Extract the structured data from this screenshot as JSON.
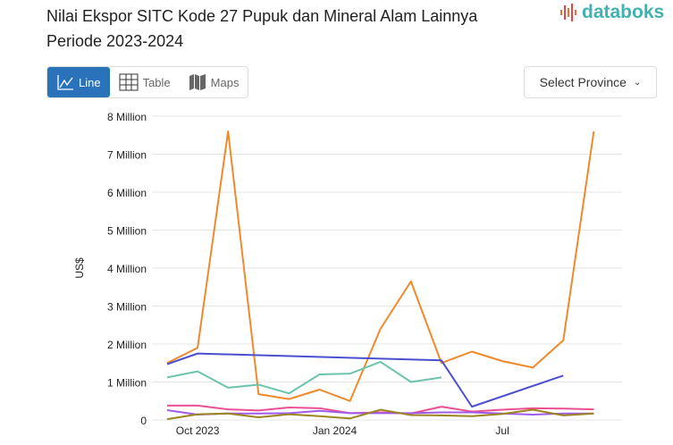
{
  "header": {
    "title_line1": "Nilai Ekspor SITC Kode 27 Pupuk dan Mineral Alam Lainnya",
    "title_line2": "Periode 2023-2024",
    "logo_text": "databoks"
  },
  "tabs": [
    {
      "label": "Line",
      "icon": "line-chart-icon",
      "active": true
    },
    {
      "label": "Table",
      "icon": "table-icon",
      "active": false
    },
    {
      "label": "Maps",
      "icon": "map-icon",
      "active": false
    }
  ],
  "province_select": {
    "label": "Select Province",
    "icon": "chevron-down-icon"
  },
  "colors": {
    "accent": "#2a73bb",
    "logo": "#3fb3b0"
  },
  "chart_data": {
    "type": "line",
    "ylabel": "US$",
    "ylim": [
      0,
      8000000
    ],
    "y_ticks": [
      {
        "v": 0,
        "label": "0"
      },
      {
        "v": 1000000,
        "label": "1 Million"
      },
      {
        "v": 2000000,
        "label": "2 Million"
      },
      {
        "v": 3000000,
        "label": "3 Million"
      },
      {
        "v": 4000000,
        "label": "4 Million"
      },
      {
        "v": 5000000,
        "label": "5 Million"
      },
      {
        "v": 6000000,
        "label": "6 Million"
      },
      {
        "v": 7000000,
        "label": "7 Million"
      },
      {
        "v": 8000000,
        "label": "8 Million"
      }
    ],
    "x_ticks": [
      {
        "i": 1,
        "label": "Oct 2023"
      },
      {
        "i": 5.5,
        "label": "Jan 2024"
      },
      {
        "i": 11,
        "label": "Jul"
      }
    ],
    "grid": true,
    "series": [
      {
        "color": "#f0892a",
        "values": [
          1500000,
          1900000,
          7600000,
          680000,
          550000,
          800000,
          500000,
          2400000,
          3650000,
          1500000,
          1800000,
          1550000,
          1380000,
          2100000,
          7600000
        ]
      },
      {
        "color": "#4a4fd0",
        "values": [
          1470000,
          1750000,
          null,
          null,
          null,
          null,
          null,
          null,
          null,
          1570000,
          350000,
          null,
          null,
          1170000,
          null
        ]
      },
      {
        "color": "#6cc3ae",
        "values": [
          1120000,
          1280000,
          850000,
          930000,
          700000,
          1200000,
          1220000,
          1530000,
          1000000,
          1120000,
          null,
          null,
          null,
          null,
          null
        ]
      },
      {
        "color": "#ec4f93",
        "values": [
          380000,
          380000,
          280000,
          250000,
          330000,
          310000,
          180000,
          200000,
          170000,
          350000,
          220000,
          270000,
          310000,
          300000,
          280000
        ]
      },
      {
        "color": "#a05be8",
        "values": [
          260000,
          140000,
          170000,
          170000,
          180000,
          240000,
          180000,
          180000,
          180000,
          200000,
          200000,
          170000,
          140000,
          170000,
          170000
        ]
      },
      {
        "color": "#9c8520",
        "values": [
          20000,
          150000,
          170000,
          70000,
          150000,
          100000,
          40000,
          270000,
          130000,
          120000,
          100000,
          160000,
          270000,
          120000,
          170000
        ]
      }
    ]
  }
}
